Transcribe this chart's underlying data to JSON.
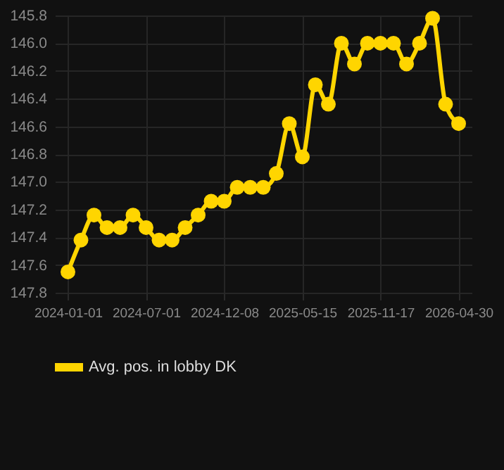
{
  "chart_data": {
    "type": "line",
    "categories": [
      "2024-01-01",
      null,
      null,
      null,
      null,
      null,
      "2024-07-01",
      null,
      null,
      null,
      null,
      null,
      "2024-12-08",
      null,
      null,
      null,
      null,
      null,
      "2025-05-15",
      null,
      null,
      null,
      null,
      null,
      "2025-11-17",
      null,
      null,
      null,
      null,
      null,
      "2026-04-30"
    ],
    "series": [
      {
        "name": "Avg. pos. in lobby DK",
        "color": "#ffd500",
        "values": [
          147.65,
          147.42,
          147.24,
          147.33,
          147.33,
          147.24,
          147.33,
          147.42,
          147.42,
          147.33,
          147.24,
          147.14,
          147.14,
          147.04,
          147.04,
          147.04,
          146.94,
          146.58,
          146.82,
          146.3,
          146.44,
          146.0,
          146.15,
          146.0,
          146.0,
          146.0,
          146.15,
          146.0,
          145.82,
          146.44,
          146.58
        ]
      }
    ],
    "ylim": [
      147.8,
      145.8
    ],
    "yticks": [
      145.8,
      {
        "value": 146,
        "label": "146.0"
      },
      146.2,
      146.4,
      146.6,
      146.8,
      {
        "value": 147,
        "label": "147.0"
      },
      147.2,
      147.4,
      147.6,
      147.8
    ],
    "grid": true,
    "legend": "bottom",
    "marker": "circle",
    "line_style": "solid"
  }
}
